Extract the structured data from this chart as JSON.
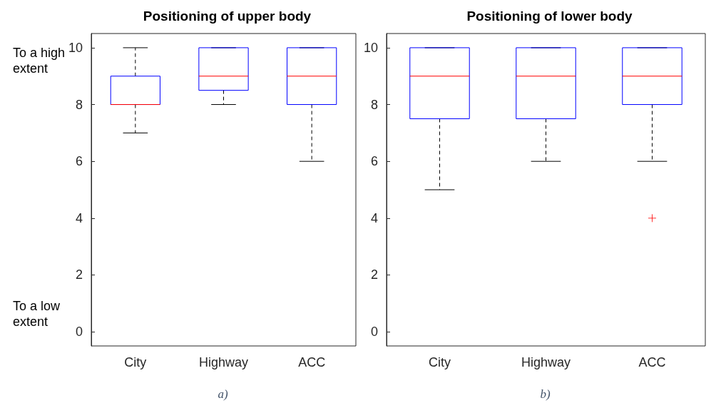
{
  "chart_data": [
    {
      "type": "box",
      "title": "Positioning of upper body",
      "categories": [
        "City",
        "Highway",
        "ACC"
      ],
      "color": "#0000ff",
      "ylim": [
        -0.5,
        10.5
      ],
      "yticks": [
        0,
        2,
        4,
        6,
        8,
        10
      ],
      "grid": false,
      "boxes": [
        {
          "low": 7,
          "q1": 8,
          "median": 8,
          "q3": 9,
          "high": 10
        },
        {
          "low": 8,
          "q1": 8.5,
          "median": 9,
          "q3": 10,
          "high": 10
        },
        {
          "low": 6,
          "q1": 8,
          "median": 9,
          "q3": 10,
          "high": 10
        }
      ],
      "annotations": [
        "To a high extent",
        "To a low extent",
        "a)"
      ]
    },
    {
      "type": "box",
      "title": "Positioning of lower body",
      "categories": [
        "City",
        "Highway",
        "ACC"
      ],
      "color": "#0000ff",
      "ylim": [
        -0.5,
        10.5
      ],
      "yticks": [
        0,
        2,
        4,
        6,
        8,
        10
      ],
      "grid": false,
      "marker": "cross",
      "boxes": [
        {
          "low": 5,
          "q1": 7.5,
          "median": 9,
          "q3": 10,
          "high": 10
        },
        {
          "low": 6,
          "q1": 7.5,
          "median": 9,
          "q3": 10,
          "high": 10
        },
        {
          "low": 6,
          "q1": 8,
          "median": 9,
          "q3": 10,
          "high": 10,
          "outliers": [
            4
          ]
        }
      ],
      "annotations": [
        "b)"
      ]
    }
  ]
}
